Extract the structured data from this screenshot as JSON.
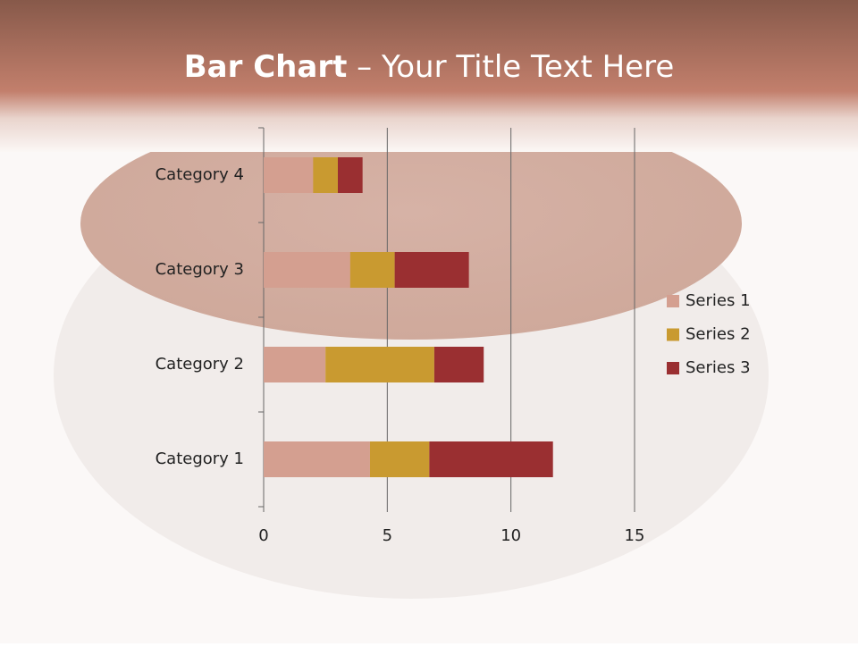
{
  "chart_data": {
    "type": "stacked-bar-horizontal",
    "title": [
      "Bar Chart",
      "– Your Title Text Here"
    ],
    "categories": [
      "Category 1",
      "Category 2",
      "Category 3",
      "Category 4"
    ],
    "series": [
      {
        "name": "Series 1",
        "color": "#d49f90",
        "values": [
          4.3,
          2.5,
          3.5,
          2
        ]
      },
      {
        "name": "Series 2",
        "color": "#c99a30",
        "values": [
          2.4,
          4.4,
          1.8,
          1
        ]
      },
      {
        "name": "Series 3",
        "color": "#9a2f31",
        "values": [
          5,
          2,
          3,
          1
        ]
      }
    ],
    "xlim": [
      0,
      15
    ],
    "xticks": [
      0,
      5,
      10,
      15
    ],
    "grid": true,
    "legend": "right"
  }
}
